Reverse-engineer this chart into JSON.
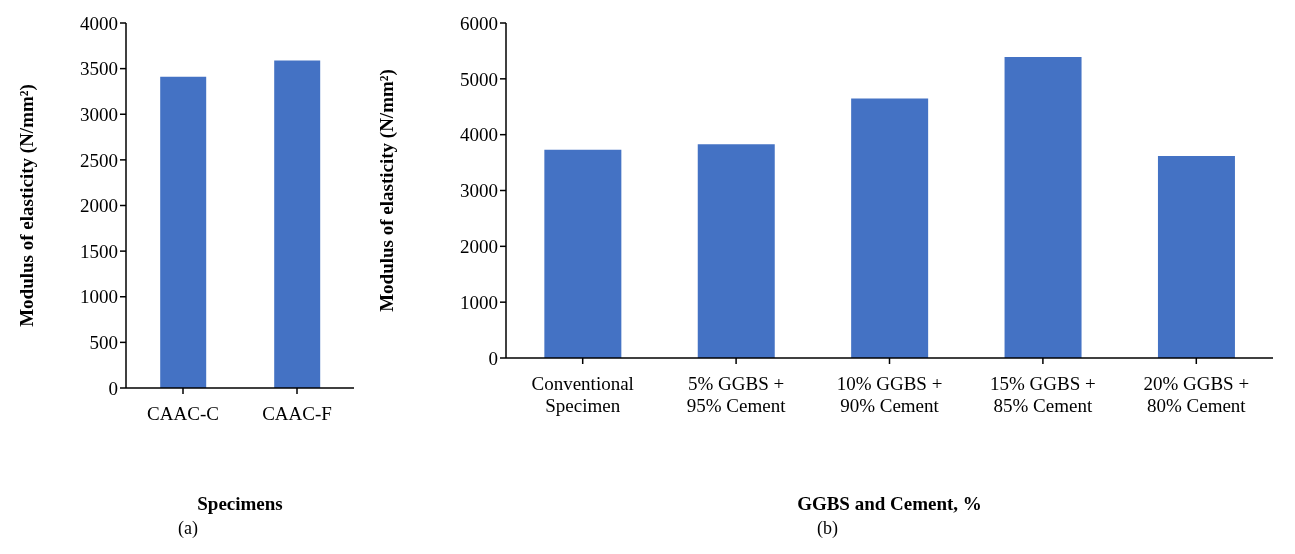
{
  "chart_data": [
    {
      "type": "bar",
      "xlabel": "Specimens",
      "ylabel": "Modulus of elasticity (N/mm²)",
      "categories": [
        "CAAC-C",
        "CAAC-F"
      ],
      "values": [
        3410,
        3590
      ],
      "color": "#4472c4",
      "ylim": [
        0,
        4000
      ],
      "yticks": [
        0,
        500,
        1000,
        1500,
        2000,
        2500,
        3000,
        3500,
        4000
      ],
      "grid": false,
      "annotations": [
        "(a)"
      ]
    },
    {
      "type": "bar",
      "xlabel": "GGBS and Cement, %",
      "ylabel": "Modulus of elasticity (N/mm²)",
      "categories": [
        "Conventional Specimen",
        "5% GGBS + 95% Cement",
        "10% GGBS + 90% Cement",
        "15% GGBS + 85% Cement",
        "20% GGBS + 80% Cement"
      ],
      "values": [
        3730,
        3830,
        4650,
        5390,
        3620
      ],
      "color": "#4472c4",
      "ylim": [
        0,
        6000
      ],
      "yticks": [
        0,
        1000,
        2000,
        3000,
        4000,
        5000,
        6000
      ],
      "grid": false,
      "annotations": [
        "(b)"
      ]
    }
  ]
}
